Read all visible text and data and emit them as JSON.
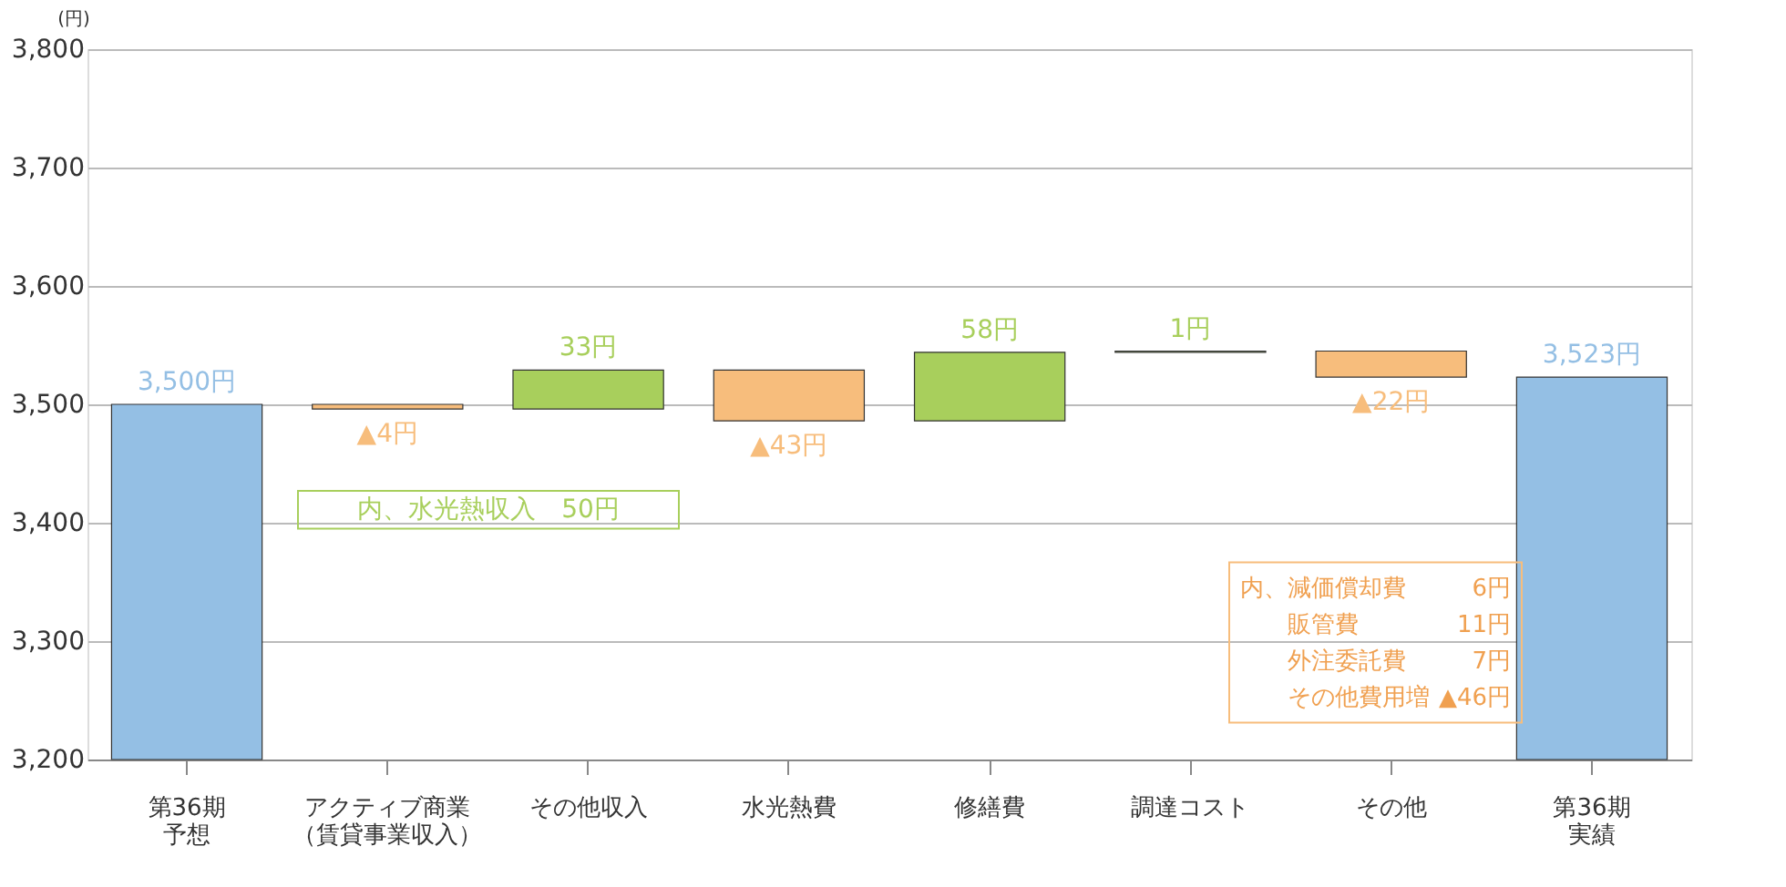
{
  "chart_data": {
    "type": "bar",
    "ylabel": "(円)",
    "categories": [
      "第36期予想",
      "アクティブ商業（賃貸事業収入）",
      "その他収入",
      "水光熱費",
      "修繕費",
      "調達コスト",
      "その他",
      "第36期実績"
    ],
    "base": [
      3200,
      3500,
      3496,
      3529,
      3486,
      3544,
      3545,
      3200
    ],
    "values": [
      300,
      -4,
      33,
      -43,
      58,
      1,
      -22,
      323
    ],
    "colors": [
      "#94bfe4",
      "#f7bd7c",
      "#a8cf5c",
      "#f7bd7c",
      "#a8cf5c",
      "#a8cf5c",
      "#f7bd7c",
      "#94bfe4"
    ],
    "value_labels": [
      "3,500円",
      "▲4円",
      "33円",
      "▲43円",
      "58円",
      "1円",
      "▲22円",
      "3,523円"
    ],
    "ylim": [
      3200,
      3800
    ],
    "yticks": [
      {
        "value": 3200,
        "label": "3,200"
      },
      {
        "value": 3300,
        "label": "3,300"
      },
      {
        "value": 3400,
        "label": "3,400"
      },
      {
        "value": 3500,
        "label": "3,500"
      },
      {
        "value": 3600,
        "label": "3,600"
      },
      {
        "value": 3700,
        "label": "3,700"
      },
      {
        "value": 3800,
        "label": "3,800"
      }
    ],
    "grid": "y",
    "annotations": [
      "内、水光熱収入　50円",
      "内、減価償却費",
      "6円",
      "販管費",
      "11円",
      "外注委託費",
      "7円",
      "その他費用増",
      "▲46円"
    ]
  }
}
